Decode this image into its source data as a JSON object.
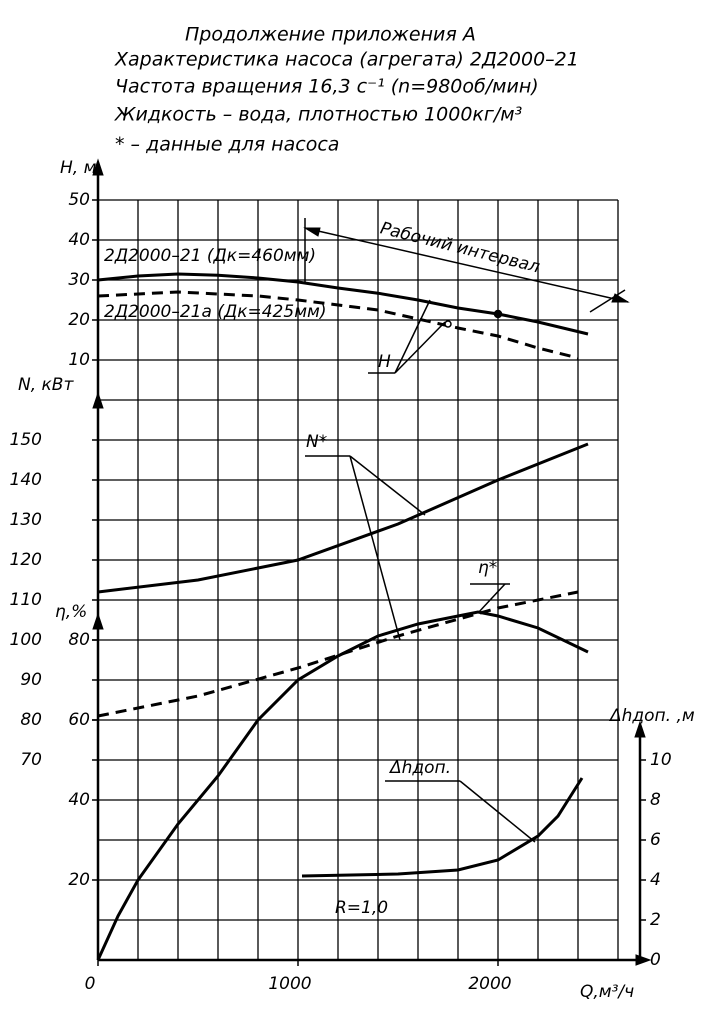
{
  "chart_data": {
    "type": "line",
    "title_lines": [
      "Продолжение приложения А",
      "Характеристика насоса (агрегата) 2Д2000–21",
      "Частота вращения 16,3 с⁻¹ (n=980об/мин)",
      "Жидкость – вода, плотностью 1000кг/м³",
      "* – данные для насоса"
    ],
    "xlabel": "Q,м³/ч",
    "xlim": [
      0,
      2600
    ],
    "xticks": [
      0,
      1000,
      2000
    ],
    "xgrid": [
      0,
      200,
      400,
      600,
      800,
      1000,
      1200,
      1400,
      1600,
      1800,
      2000,
      2200,
      2400,
      2600
    ],
    "ygrid": [
      0,
      10,
      20,
      30,
      40,
      50,
      60,
      70,
      80,
      90,
      100,
      110,
      120,
      130,
      140,
      150,
      160,
      170,
      180,
      190
    ],
    "axes": {
      "H": {
        "label": "H, м",
        "ylim": [
          10,
          50
        ],
        "yticks": [
          10,
          20,
          30,
          40,
          50
        ]
      },
      "N": {
        "label": "N, кВт",
        "ylim": [
          70,
          150
        ],
        "yticks": [
          70,
          80,
          90,
          100,
          110,
          120,
          130,
          140,
          150
        ]
      },
      "eta": {
        "label": "η,%",
        "ylim": [
          0,
          80
        ],
        "yticks": [
          20,
          40,
          60,
          80
        ]
      },
      "dh": {
        "label": "Δhдоп. ,м",
        "ylim": [
          0,
          10
        ],
        "yticks": [
          0,
          2,
          4,
          6,
          8,
          10
        ]
      }
    },
    "series": [
      {
        "axis": "H",
        "color": "#000000",
        "dashed": false,
        "x": [
          0,
          200,
          400,
          600,
          800,
          1000,
          1200,
          1400,
          1600,
          1800,
          2000,
          2200,
          2450
        ],
        "values": [
          30,
          31,
          31.5,
          31.2,
          30.5,
          29.5,
          28,
          26.7,
          25,
          23,
          21.5,
          19.5,
          16.5
        ]
      },
      {
        "axis": "H",
        "color": "#000000",
        "dashed": true,
        "x": [
          0,
          400,
          800,
          1000,
          1400,
          1800,
          2000,
          2200,
          2400
        ],
        "values": [
          26,
          27,
          26,
          25,
          22.5,
          18,
          16,
          13,
          10.5
        ]
      },
      {
        "axis": "N",
        "color": "#000000",
        "dashed": false,
        "x": [
          0,
          500,
          1000,
          1500,
          2000,
          2450
        ],
        "values": [
          112,
          115,
          120,
          129,
          140,
          149
        ]
      },
      {
        "axis": "N",
        "color": "#000000",
        "dashed": true,
        "x": [
          0,
          500,
          1000,
          1500,
          2000,
          2400
        ],
        "values": [
          81,
          86,
          93,
          101,
          108,
          112
        ]
      },
      {
        "axis": "eta",
        "color": "#000000",
        "dashed": false,
        "x": [
          0,
          100,
          200,
          400,
          600,
          800,
          1000,
          1200,
          1400,
          1600,
          1800,
          1900,
          2000,
          2200,
          2450
        ],
        "values": [
          0,
          11,
          20,
          34,
          46,
          60,
          70,
          76,
          81,
          84,
          86,
          87,
          86,
          83,
          77
        ]
      },
      {
        "axis": "dh",
        "color": "#000000",
        "dashed": false,
        "x": [
          1020,
          1500,
          1800,
          2000,
          2200,
          2300,
          2420
        ],
        "values": [
          4.2,
          4.3,
          4.5,
          5,
          6.2,
          7.2,
          9.1
        ]
      }
    ],
    "points": [
      {
        "axis": "H",
        "x": 2000,
        "y": 21.5,
        "filled": true
      },
      {
        "axis": "H",
        "x": 1750,
        "y": 19,
        "filled": false
      }
    ],
    "annotations": [
      "2Д2000–21 (Дк=460мм)",
      "2Д2000–21а (Дк=425мм)",
      "Рабочий интервал",
      "H",
      "N*",
      "η*",
      "Δhдоп.",
      "R=1,0"
    ]
  }
}
